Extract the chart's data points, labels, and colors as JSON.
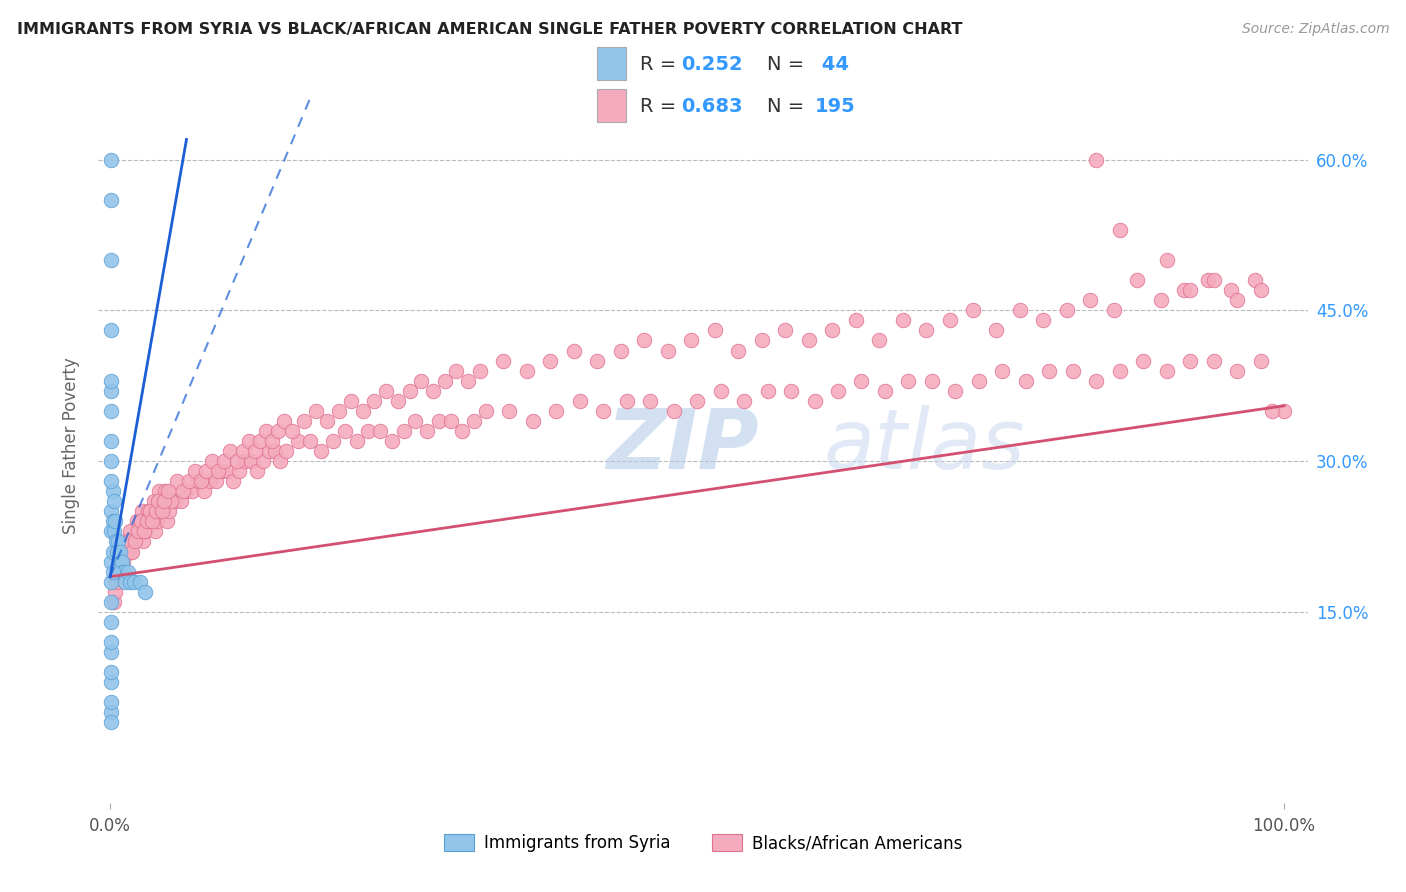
{
  "title": "IMMIGRANTS FROM SYRIA VS BLACK/AFRICAN AMERICAN SINGLE FATHER POVERTY CORRELATION CHART",
  "source": "Source: ZipAtlas.com",
  "ylabel": "Single Father Poverty",
  "ytick_vals": [
    0.15,
    0.3,
    0.45,
    0.6
  ],
  "ytick_labels": [
    "15.0%",
    "30.0%",
    "45.0%",
    "60.0%"
  ],
  "xtick_vals": [
    0.0,
    1.0
  ],
  "xtick_labels": [
    "0.0%",
    "100.0%"
  ],
  "xlim": [
    -0.01,
    1.02
  ],
  "ylim": [
    -0.04,
    0.67
  ],
  "legend_blue_R": "0.252",
  "legend_blue_N": "44",
  "legend_pink_R": "0.683",
  "legend_pink_N": "195",
  "legend_label_blue": "Immigrants from Syria",
  "legend_label_pink": "Blacks/African Americans",
  "blue_color": "#92C5EA",
  "pink_color": "#F4ABBE",
  "blue_edge_color": "#5A9FD4",
  "pink_edge_color": "#E07090",
  "blue_line_color": "#1A5FD4",
  "pink_line_color": "#D45070",
  "watermark_color": "#C8D8EE",
  "blue_scatter_x": [
    0.001,
    0.001,
    0.001,
    0.001,
    0.001,
    0.001,
    0.001,
    0.001,
    0.001,
    0.001,
    0.001,
    0.001,
    0.001,
    0.001,
    0.002,
    0.002,
    0.002,
    0.003,
    0.003,
    0.004,
    0.005,
    0.006,
    0.007,
    0.008,
    0.009,
    0.01,
    0.011,
    0.012,
    0.013,
    0.015,
    0.017,
    0.02,
    0.025,
    0.03,
    0.002,
    0.001,
    0.001,
    0.001,
    0.001,
    0.001,
    0.001,
    0.001,
    0.001,
    0.001
  ],
  "blue_scatter_y": [
    0.6,
    0.56,
    0.5,
    0.43,
    0.37,
    0.3,
    0.25,
    0.23,
    0.2,
    0.18,
    0.16,
    0.14,
    0.11,
    0.08,
    0.27,
    0.24,
    0.21,
    0.26,
    0.23,
    0.24,
    0.22,
    0.21,
    0.22,
    0.21,
    0.2,
    0.2,
    0.19,
    0.19,
    0.18,
    0.19,
    0.18,
    0.18,
    0.18,
    0.17,
    0.19,
    0.05,
    0.04,
    0.06,
    0.09,
    0.12,
    0.28,
    0.32,
    0.35,
    0.38
  ],
  "pink_scatter_x": [
    0.005,
    0.008,
    0.01,
    0.012,
    0.015,
    0.018,
    0.02,
    0.022,
    0.025,
    0.028,
    0.03,
    0.033,
    0.035,
    0.038,
    0.04,
    0.043,
    0.045,
    0.048,
    0.05,
    0.055,
    0.06,
    0.065,
    0.07,
    0.075,
    0.08,
    0.085,
    0.09,
    0.095,
    0.1,
    0.105,
    0.11,
    0.115,
    0.12,
    0.125,
    0.13,
    0.135,
    0.14,
    0.145,
    0.15,
    0.16,
    0.17,
    0.18,
    0.19,
    0.2,
    0.21,
    0.22,
    0.23,
    0.24,
    0.25,
    0.26,
    0.27,
    0.28,
    0.29,
    0.3,
    0.31,
    0.32,
    0.34,
    0.36,
    0.38,
    0.4,
    0.42,
    0.44,
    0.46,
    0.48,
    0.5,
    0.52,
    0.54,
    0.56,
    0.58,
    0.6,
    0.62,
    0.64,
    0.66,
    0.68,
    0.7,
    0.72,
    0.74,
    0.76,
    0.78,
    0.8,
    0.82,
    0.84,
    0.86,
    0.88,
    0.9,
    0.92,
    0.94,
    0.96,
    0.98,
    1.0,
    0.007,
    0.013,
    0.017,
    0.023,
    0.027,
    0.032,
    0.037,
    0.042,
    0.047,
    0.052,
    0.057,
    0.062,
    0.067,
    0.072,
    0.077,
    0.082,
    0.087,
    0.092,
    0.097,
    0.102,
    0.108,
    0.113,
    0.118,
    0.123,
    0.128,
    0.133,
    0.138,
    0.143,
    0.148,
    0.155,
    0.165,
    0.175,
    0.185,
    0.195,
    0.205,
    0.215,
    0.225,
    0.235,
    0.245,
    0.255,
    0.265,
    0.275,
    0.285,
    0.295,
    0.305,
    0.315,
    0.335,
    0.355,
    0.375,
    0.395,
    0.415,
    0.435,
    0.455,
    0.475,
    0.495,
    0.515,
    0.535,
    0.555,
    0.575,
    0.595,
    0.615,
    0.635,
    0.655,
    0.675,
    0.695,
    0.715,
    0.735,
    0.755,
    0.775,
    0.795,
    0.815,
    0.835,
    0.855,
    0.875,
    0.895,
    0.915,
    0.935,
    0.955,
    0.975,
    0.003,
    0.004,
    0.006,
    0.009,
    0.011,
    0.014,
    0.016,
    0.019,
    0.021,
    0.024,
    0.026,
    0.029,
    0.031,
    0.034,
    0.036,
    0.039,
    0.041,
    0.044,
    0.046,
    0.049
  ],
  "pink_scatter_y": [
    0.18,
    0.19,
    0.2,
    0.21,
    0.22,
    0.21,
    0.22,
    0.23,
    0.23,
    0.22,
    0.23,
    0.24,
    0.24,
    0.23,
    0.24,
    0.25,
    0.25,
    0.24,
    0.25,
    0.26,
    0.26,
    0.27,
    0.27,
    0.28,
    0.27,
    0.28,
    0.28,
    0.29,
    0.29,
    0.28,
    0.29,
    0.3,
    0.3,
    0.29,
    0.3,
    0.31,
    0.31,
    0.3,
    0.31,
    0.32,
    0.32,
    0.31,
    0.32,
    0.33,
    0.32,
    0.33,
    0.33,
    0.32,
    0.33,
    0.34,
    0.33,
    0.34,
    0.34,
    0.33,
    0.34,
    0.35,
    0.35,
    0.34,
    0.35,
    0.36,
    0.35,
    0.36,
    0.36,
    0.35,
    0.36,
    0.37,
    0.36,
    0.37,
    0.37,
    0.36,
    0.37,
    0.38,
    0.37,
    0.38,
    0.38,
    0.37,
    0.38,
    0.39,
    0.38,
    0.39,
    0.39,
    0.38,
    0.39,
    0.4,
    0.39,
    0.4,
    0.4,
    0.39,
    0.4,
    0.35,
    0.2,
    0.22,
    0.23,
    0.24,
    0.25,
    0.25,
    0.26,
    0.27,
    0.27,
    0.26,
    0.28,
    0.27,
    0.28,
    0.29,
    0.28,
    0.29,
    0.3,
    0.29,
    0.3,
    0.31,
    0.3,
    0.31,
    0.32,
    0.31,
    0.32,
    0.33,
    0.32,
    0.33,
    0.34,
    0.33,
    0.34,
    0.35,
    0.34,
    0.35,
    0.36,
    0.35,
    0.36,
    0.37,
    0.36,
    0.37,
    0.38,
    0.37,
    0.38,
    0.39,
    0.38,
    0.39,
    0.4,
    0.39,
    0.4,
    0.41,
    0.4,
    0.41,
    0.42,
    0.41,
    0.42,
    0.43,
    0.41,
    0.42,
    0.43,
    0.42,
    0.43,
    0.44,
    0.42,
    0.44,
    0.43,
    0.44,
    0.45,
    0.43,
    0.45,
    0.44,
    0.45,
    0.46,
    0.45,
    0.48,
    0.46,
    0.47,
    0.48,
    0.47,
    0.48,
    0.16,
    0.17,
    0.18,
    0.19,
    0.2,
    0.21,
    0.22,
    0.21,
    0.22,
    0.23,
    0.24,
    0.23,
    0.24,
    0.25,
    0.24,
    0.25,
    0.26,
    0.25,
    0.26,
    0.27
  ],
  "pink_extra_x": [
    0.84,
    0.86,
    0.9,
    0.92,
    0.94,
    0.96,
    0.98,
    0.99
  ],
  "pink_extra_y": [
    0.6,
    0.53,
    0.5,
    0.47,
    0.48,
    0.46,
    0.47,
    0.35
  ],
  "blue_trendline_x0": 0.0,
  "blue_trendline_x1": 0.065,
  "blue_trendline_y0": 0.185,
  "blue_trendline_y1": 0.62,
  "blue_trendline_dashed_x0": 0.0,
  "blue_trendline_dashed_x1": 0.17,
  "blue_trendline_dashed_y0": 0.185,
  "blue_trendline_dashed_y1": 0.66,
  "pink_trendline_x0": 0.0,
  "pink_trendline_x1": 1.0,
  "pink_trendline_y0": 0.185,
  "pink_trendline_y1": 0.355
}
